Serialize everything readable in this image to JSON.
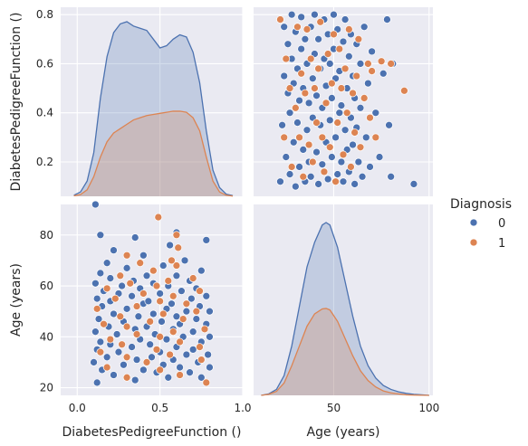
{
  "chart_data": {
    "type": "scatter",
    "kind": "pairplot",
    "variables": [
      "DiabetesPedigreeFunction ()",
      "Age (years)"
    ],
    "hue": "Diagnosis",
    "legend": {
      "title": "Diagnosis",
      "placement": "right",
      "entries": [
        {
          "label": "0",
          "color": "#4c72b0"
        },
        {
          "label": "1",
          "color": "#dd8452"
        }
      ]
    },
    "grid": true,
    "x_ranges": [
      [
        -0.1,
        1.0
      ],
      [
        8,
        102
      ]
    ],
    "y_ranges": [
      [
        0.06,
        0.83
      ],
      [
        17,
        92
      ]
    ],
    "x_ticks": [
      {
        "values": [
          0.0,
          0.5,
          1.0
        ],
        "labels": [
          "0.0",
          "0.5",
          "1.0"
        ]
      },
      {
        "values": [
          50,
          100
        ],
        "labels": [
          "50",
          "100"
        ]
      }
    ],
    "y_ticks": [
      {
        "values": [
          0.2,
          0.4,
          0.6,
          0.8
        ],
        "labels": [
          "0.2",
          "0.4",
          "0.6",
          "0.8"
        ]
      },
      {
        "values": [
          20,
          40,
          60,
          80
        ],
        "labels": [
          "20",
          "40",
          "60",
          "80"
        ]
      }
    ],
    "diagonal": [
      {
        "variable": "DiabetesPedigreeFunction ()",
        "type": "area",
        "series": [
          {
            "name": "0",
            "color": "#4c72b0",
            "x": [
              -0.02,
              0.02,
              0.06,
              0.1,
              0.14,
              0.18,
              0.22,
              0.26,
              0.3,
              0.34,
              0.38,
              0.42,
              0.46,
              0.5,
              0.54,
              0.58,
              0.62,
              0.66,
              0.7,
              0.74,
              0.78,
              0.82,
              0.86,
              0.9,
              0.94
            ],
            "y": [
              0.005,
              0.02,
              0.07,
              0.2,
              0.45,
              0.64,
              0.75,
              0.79,
              0.8,
              0.78,
              0.77,
              0.76,
              0.72,
              0.68,
              0.69,
              0.72,
              0.74,
              0.73,
              0.66,
              0.52,
              0.3,
              0.12,
              0.04,
              0.01,
              0.003
            ]
          },
          {
            "name": "1",
            "color": "#dd8452",
            "x": [
              -0.02,
              0.02,
              0.06,
              0.1,
              0.14,
              0.18,
              0.22,
              0.26,
              0.3,
              0.34,
              0.38,
              0.42,
              0.46,
              0.5,
              0.54,
              0.58,
              0.62,
              0.66,
              0.7,
              0.74,
              0.78,
              0.82,
              0.86,
              0.9,
              0.94
            ],
            "y": [
              0.002,
              0.008,
              0.03,
              0.09,
              0.18,
              0.25,
              0.29,
              0.31,
              0.33,
              0.35,
              0.36,
              0.37,
              0.375,
              0.38,
              0.385,
              0.39,
              0.39,
              0.385,
              0.36,
              0.3,
              0.18,
              0.07,
              0.02,
              0.005,
              0.001
            ]
          }
        ]
      },
      {
        "variable": "Age (years)",
        "type": "area",
        "series": [
          {
            "name": "0",
            "color": "#4c72b0",
            "x": [
              12,
              16,
              20,
              24,
              28,
              32,
              36,
              40,
              44,
              46,
              48,
              52,
              56,
              60,
              64,
              68,
              72,
              76,
              80,
              84,
              88,
              92,
              96,
              100
            ],
            "y": [
              0.0,
              0.003,
              0.012,
              0.04,
              0.1,
              0.18,
              0.26,
              0.31,
              0.345,
              0.35,
              0.345,
              0.3,
              0.23,
              0.16,
              0.1,
              0.06,
              0.035,
              0.02,
              0.012,
              0.007,
              0.004,
              0.002,
              0.001,
              0.0
            ]
          },
          {
            "name": "1",
            "color": "#dd8452",
            "x": [
              12,
              16,
              20,
              24,
              28,
              32,
              36,
              40,
              44,
              46,
              48,
              52,
              56,
              60,
              64,
              68,
              72,
              76,
              80,
              84,
              88,
              92,
              96,
              100
            ],
            "y": [
              0.0,
              0.002,
              0.008,
              0.025,
              0.06,
              0.1,
              0.14,
              0.165,
              0.175,
              0.176,
              0.173,
              0.15,
              0.115,
              0.08,
              0.05,
              0.03,
              0.017,
              0.009,
              0.005,
              0.003,
              0.001,
              0.0005,
              0.0002,
              0.0
            ]
          }
        ]
      }
    ],
    "scatter": {
      "x_variable": "Age (years)",
      "y_variable": "DiabetesPedigreeFunction ()",
      "series": [
        {
          "name": "0",
          "color": "#4c72b0",
          "points": [
            [
              22,
              0.12
            ],
            [
              23,
              0.35
            ],
            [
              24,
              0.55
            ],
            [
              24,
              0.75
            ],
            [
              25,
              0.22
            ],
            [
              26,
              0.48
            ],
            [
              26,
              0.68
            ],
            [
              27,
              0.15
            ],
            [
              27,
              0.4
            ],
            [
              28,
              0.62
            ],
            [
              28,
              0.8
            ],
            [
              29,
              0.28
            ],
            [
              29,
              0.52
            ],
            [
              30,
              0.1
            ],
            [
              30,
              0.73
            ],
            [
              31,
              0.36
            ],
            [
              31,
              0.58
            ],
            [
              32,
              0.18
            ],
            [
              32,
              0.45
            ],
            [
              33,
              0.66
            ],
            [
              33,
              0.79
            ],
            [
              34,
              0.25
            ],
            [
              34,
              0.5
            ],
            [
              35,
              0.12
            ],
            [
              35,
              0.7
            ],
            [
              36,
              0.33
            ],
            [
              36,
              0.6
            ],
            [
              37,
              0.2
            ],
            [
              37,
              0.44
            ],
            [
              38,
              0.75
            ],
            [
              38,
              0.14
            ],
            [
              39,
              0.54
            ],
            [
              39,
              0.38
            ],
            [
              40,
              0.64
            ],
            [
              40,
              0.8
            ],
            [
              41,
              0.24
            ],
            [
              41,
              0.47
            ],
            [
              42,
              0.11
            ],
            [
              42,
              0.7
            ],
            [
              43,
              0.35
            ],
            [
              43,
              0.58
            ],
            [
              44,
              0.19
            ],
            [
              44,
              0.42
            ],
            [
              45,
              0.78
            ],
            [
              45,
              0.62
            ],
            [
              46,
              0.28
            ],
            [
              46,
              0.51
            ],
            [
              47,
              0.13
            ],
            [
              47,
              0.72
            ],
            [
              48,
              0.37
            ],
            [
              48,
              0.6
            ],
            [
              49,
              0.22
            ],
            [
              49,
              0.46
            ],
            [
              50,
              0.8
            ],
            [
              50,
              0.66
            ],
            [
              51,
              0.3
            ],
            [
              51,
              0.54
            ],
            [
              52,
              0.15
            ],
            [
              52,
              0.74
            ],
            [
              53,
              0.4
            ],
            [
              53,
              0.57
            ],
            [
              54,
              0.2
            ],
            [
              54,
              0.43
            ],
            [
              55,
              0.69
            ],
            [
              55,
              0.12
            ],
            [
              56,
              0.33
            ],
            [
              56,
              0.78
            ],
            [
              57,
              0.25
            ],
            [
              57,
              0.5
            ],
            [
              58,
              0.63
            ],
            [
              58,
              0.16
            ],
            [
              59,
              0.38
            ],
            [
              59,
              0.72
            ],
            [
              60,
              0.27
            ],
            [
              60,
              0.55
            ],
            [
              61,
              0.11
            ],
            [
              61,
              0.46
            ],
            [
              62,
              0.68
            ],
            [
              62,
              0.34
            ],
            [
              63,
              0.2
            ],
            [
              64,
              0.6
            ],
            [
              64,
              0.42
            ],
            [
              65,
              0.14
            ],
            [
              66,
              0.75
            ],
            [
              67,
              0.3
            ],
            [
              68,
              0.52
            ],
            [
              69,
              0.18
            ],
            [
              70,
              0.65
            ],
            [
              72,
              0.4
            ],
            [
              74,
              0.22
            ],
            [
              76,
              0.56
            ],
            [
              78,
              0.78
            ],
            [
              79,
              0.35
            ],
            [
              80,
              0.14
            ],
            [
              81,
              0.6
            ],
            [
              92,
              0.11
            ]
          ]
        },
        {
          "name": "1",
          "color": "#dd8452",
          "points": [
            [
              22,
              0.78
            ],
            [
              24,
              0.3
            ],
            [
              25,
              0.62
            ],
            [
              27,
              0.5
            ],
            [
              28,
              0.18
            ],
            [
              30,
              0.42
            ],
            [
              31,
              0.75
            ],
            [
              32,
              0.3
            ],
            [
              33,
              0.56
            ],
            [
              34,
              0.14
            ],
            [
              35,
              0.48
            ],
            [
              36,
              0.74
            ],
            [
              37,
              0.27
            ],
            [
              38,
              0.62
            ],
            [
              39,
              0.2
            ],
            [
              40,
              0.5
            ],
            [
              41,
              0.36
            ],
            [
              42,
              0.58
            ],
            [
              43,
              0.77
            ],
            [
              44,
              0.3
            ],
            [
              45,
              0.16
            ],
            [
              46,
              0.44
            ],
            [
              47,
              0.64
            ],
            [
              48,
              0.26
            ],
            [
              49,
              0.52
            ],
            [
              50,
              0.72
            ],
            [
              51,
              0.12
            ],
            [
              52,
              0.36
            ],
            [
              53,
              0.66
            ],
            [
              54,
              0.5
            ],
            [
              55,
              0.23
            ],
            [
              56,
              0.58
            ],
            [
              57,
              0.4
            ],
            [
              58,
              0.74
            ],
            [
              59,
              0.18
            ],
            [
              60,
              0.48
            ],
            [
              61,
              0.32
            ],
            [
              62,
              0.55
            ],
            [
              63,
              0.7
            ],
            [
              64,
              0.26
            ],
            [
              66,
              0.46
            ],
            [
              68,
              0.6
            ],
            [
              69,
              0.38
            ],
            [
              70,
              0.57
            ],
            [
              72,
              0.3
            ],
            [
              75,
              0.61
            ],
            [
              80,
              0.6
            ],
            [
              87,
              0.49
            ]
          ]
        }
      ]
    }
  }
}
